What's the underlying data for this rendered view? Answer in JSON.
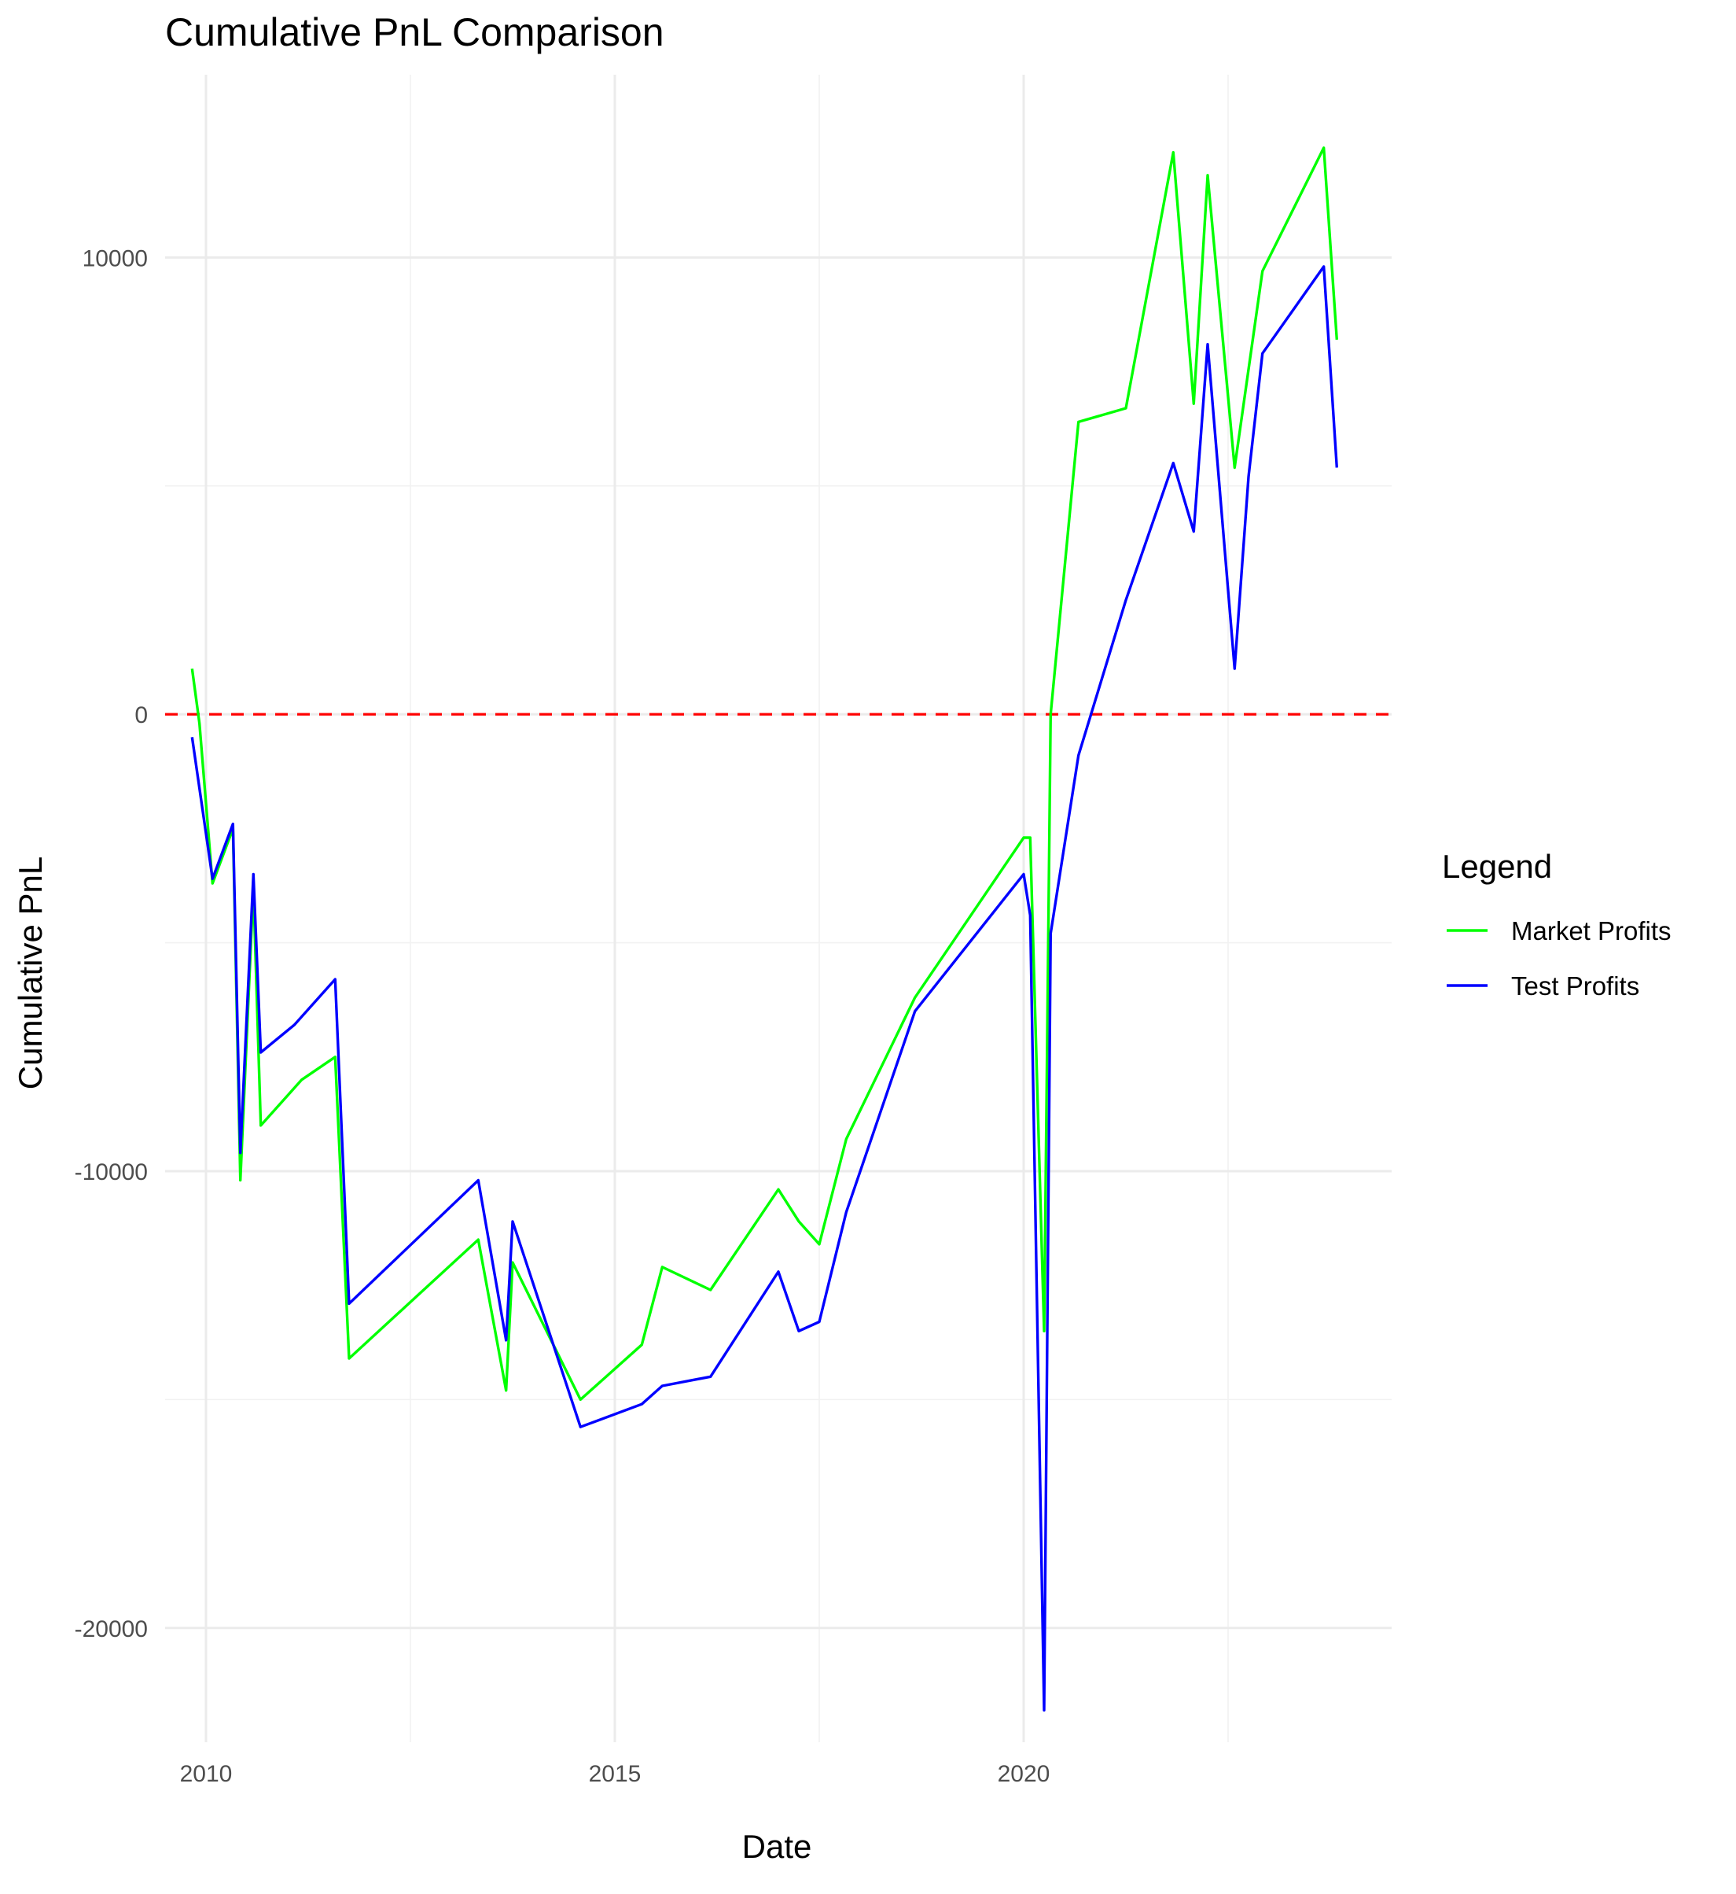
{
  "chart_data": {
    "type": "line",
    "title": "Cumulative PnL Comparison",
    "xlabel": "Date",
    "ylabel": "Cumulative PnL",
    "x_ticks": [
      "2010",
      "2015",
      "2020"
    ],
    "y_ticks": [
      "10000",
      "0",
      "-10000",
      "-20000"
    ],
    "x_tick_values": [
      2010,
      2015,
      2020
    ],
    "y_tick_values": [
      10000,
      0,
      -10000,
      -20000
    ],
    "xlim": [
      2009.5,
      2024.5
    ],
    "ylim": [
      -22500,
      14000
    ],
    "grid": true,
    "legend": {
      "title": "Legend",
      "position": "right"
    },
    "reference_line": {
      "y": 0,
      "color": "#ff0000",
      "style": "dashed"
    },
    "series": [
      {
        "name": "Market Profits",
        "color": "#00ff00",
        "x": [
          2009.83,
          2009.92,
          2010.08,
          2010.33,
          2010.42,
          2010.58,
          2010.67,
          2011.17,
          2011.58,
          2011.75,
          2013.33,
          2013.67,
          2013.75,
          2014.58,
          2015.33,
          2015.58,
          2016.17,
          2017.0,
          2017.25,
          2017.5,
          2017.83,
          2018.67,
          2020.0,
          2020.08,
          2020.25,
          2020.33,
          2020.67,
          2021.25,
          2021.83,
          2022.08,
          2022.25,
          2022.58,
          2022.92,
          2023.67,
          2023.83
        ],
        "values": [
          1000,
          -200,
          -3700,
          -2500,
          -10200,
          -3800,
          -9000,
          -8000,
          -7500,
          -14100,
          -11500,
          -14800,
          -12000,
          -15000,
          -13800,
          -12100,
          -12600,
          -10400,
          -11100,
          -11600,
          -9300,
          -6200,
          -2700,
          -2700,
          -13500,
          0,
          6400,
          6700,
          12300,
          6800,
          11800,
          5400,
          9700,
          12400,
          8200
        ]
      },
      {
        "name": "Test Profits",
        "color": "#0000ff",
        "x": [
          2009.83,
          2010.08,
          2010.33,
          2010.42,
          2010.58,
          2010.67,
          2011.08,
          2011.58,
          2011.75,
          2013.33,
          2013.67,
          2013.75,
          2014.58,
          2015.33,
          2015.58,
          2016.17,
          2017.0,
          2017.25,
          2017.5,
          2017.83,
          2018.67,
          2020.0,
          2020.08,
          2020.25,
          2020.33,
          2020.67,
          2021.25,
          2021.83,
          2022.08,
          2022.25,
          2022.58,
          2022.75,
          2022.92,
          2023.67,
          2023.83
        ],
        "values": [
          -500,
          -3600,
          -2400,
          -9600,
          -3500,
          -7400,
          -6800,
          -5800,
          -12900,
          -10200,
          -13700,
          -11100,
          -15600,
          -15100,
          -14700,
          -14500,
          -12200,
          -13500,
          -13300,
          -10900,
          -6500,
          -3500,
          -4400,
          -21800,
          -4800,
          -900,
          2500,
          5500,
          4000,
          8100,
          1000,
          5200,
          7900,
          9800,
          5400
        ]
      }
    ]
  }
}
